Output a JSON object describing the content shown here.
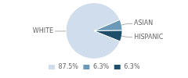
{
  "chart_data": {
    "type": "pie",
    "categories": [
      "WHITE",
      "ASIAN",
      "HISPANIC"
    ],
    "values": [
      87.5,
      6.3,
      6.3
    ],
    "value_labels": [
      "87.5%",
      "6.3%",
      "6.3%"
    ],
    "colors": [
      "#cfdded",
      "#6a9ab8",
      "#1f4e6b"
    ],
    "legend": "bottom"
  }
}
